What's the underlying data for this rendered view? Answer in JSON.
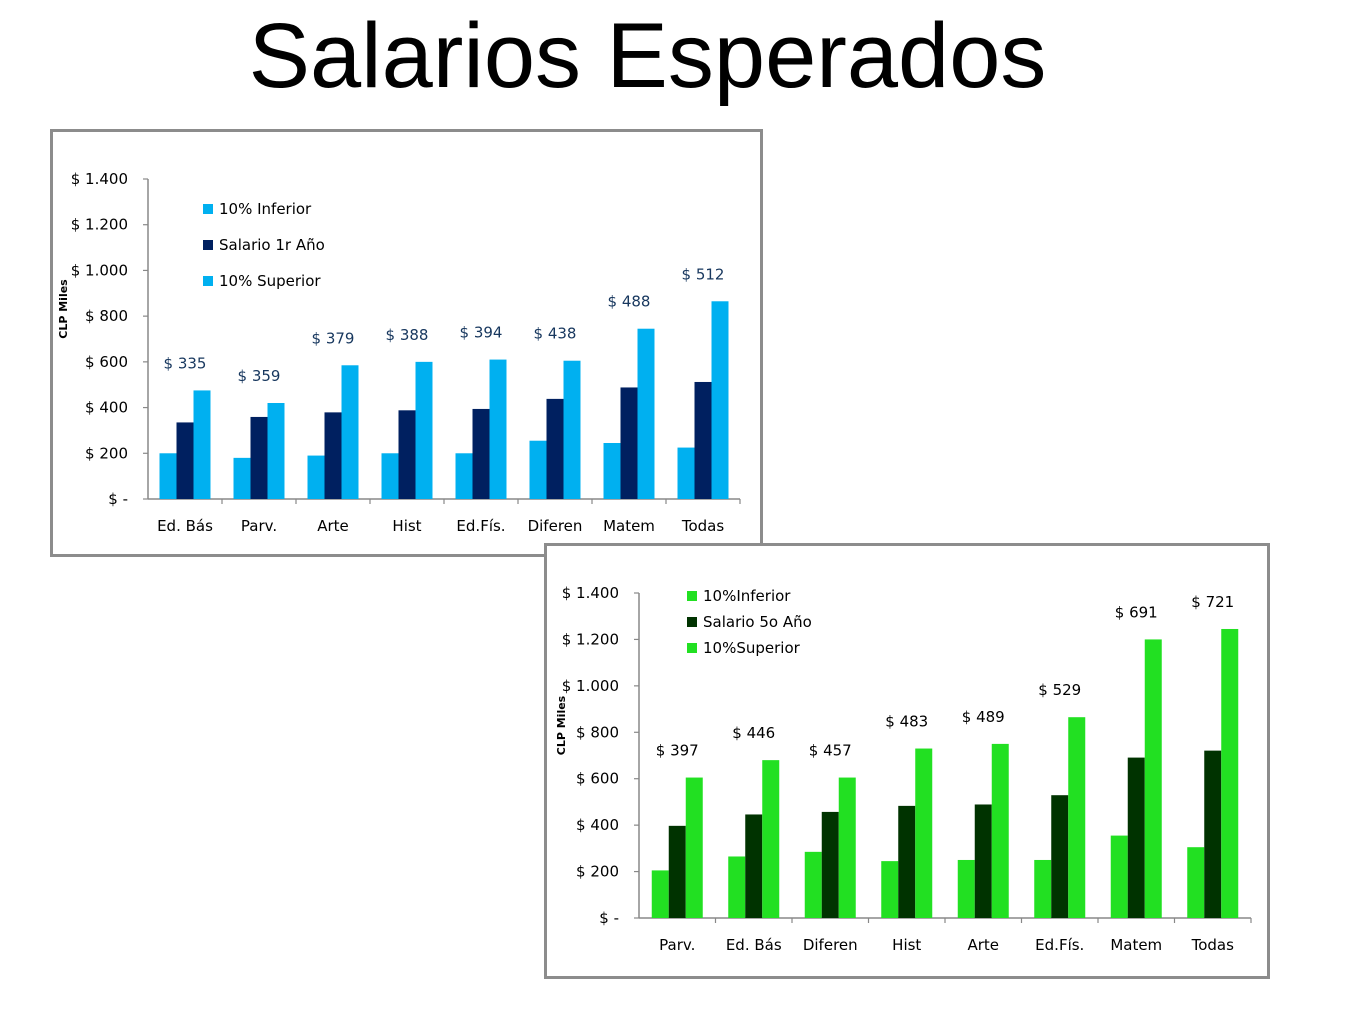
{
  "title": "Salarios Esperados",
  "colors": {
    "chart1_low": "#00b0f0",
    "chart1_mid": "#002060",
    "chart1_high": "#00b0f0",
    "chart2_low": "#22e022",
    "chart2_mid": "#003300",
    "chart2_high": "#22e022",
    "chart1_label": "#17375e",
    "chart2_label": "#000000"
  },
  "chart_data": [
    {
      "type": "bar",
      "ylabel": "CLP Miles",
      "ylim": [
        0,
        1400
      ],
      "yticks": [
        0,
        200,
        400,
        600,
        800,
        1000,
        1200,
        1400
      ],
      "ytick_labels": [
        "$ -",
        "$ 200",
        "$ 400",
        "$ 600",
        "$ 800",
        "$ 1.000",
        "$ 1.200",
        "$ 1.400"
      ],
      "categories": [
        "Ed. Bás",
        "Parv.",
        "Arte",
        "Hist",
        "Ed.Fís.",
        "Diferen",
        "Matem",
        "Todas"
      ],
      "series": [
        {
          "name": "10% Inferior",
          "values": [
            200,
            180,
            190,
            200,
            200,
            255,
            245,
            225
          ]
        },
        {
          "name": "Salario 1r Año",
          "values": [
            335,
            359,
            379,
            388,
            394,
            438,
            488,
            512
          ]
        },
        {
          "name": "10% Superior",
          "values": [
            475,
            420,
            585,
            600,
            610,
            605,
            745,
            865
          ]
        }
      ],
      "data_labels": [
        "$ 335",
        "$ 359",
        "$ 379",
        "$ 388",
        "$ 394",
        "$ 438",
        "$ 488",
        "$ 512"
      ],
      "legend_position": "top-left"
    },
    {
      "type": "bar",
      "ylabel": "CLP Miles",
      "ylim": [
        0,
        1400
      ],
      "yticks": [
        0,
        200,
        400,
        600,
        800,
        1000,
        1200,
        1400
      ],
      "ytick_labels": [
        "$ -",
        "$ 200",
        "$ 400",
        "$ 600",
        "$ 800",
        "$ 1.000",
        "$ 1.200",
        "$ 1.400"
      ],
      "categories": [
        "Parv.",
        "Ed. Bás",
        "Diferen",
        "Hist",
        "Arte",
        "Ed.Fís.",
        "Matem",
        "Todas"
      ],
      "series": [
        {
          "name": "10%Inferior",
          "values": [
            205,
            265,
            285,
            245,
            250,
            250,
            355,
            305
          ]
        },
        {
          "name": "Salario 5o Año",
          "values": [
            397,
            446,
            457,
            483,
            489,
            529,
            691,
            721
          ]
        },
        {
          "name": "10%Superior",
          "values": [
            605,
            680,
            605,
            730,
            750,
            865,
            1200,
            1245
          ]
        }
      ],
      "data_labels": [
        "$ 397",
        "$ 446",
        "$ 457",
        "$ 483",
        "$ 489",
        "$ 529",
        "$ 691",
        "$ 721"
      ],
      "legend_position": "top-left"
    }
  ]
}
